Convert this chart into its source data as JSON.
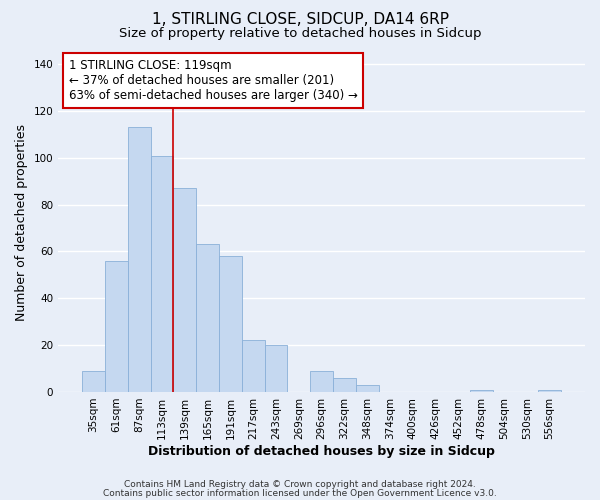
{
  "title_line1": "1, STIRLING CLOSE, SIDCUP, DA14 6RP",
  "title_line2": "Size of property relative to detached houses in Sidcup",
  "xlabel": "Distribution of detached houses by size in Sidcup",
  "ylabel": "Number of detached properties",
  "bar_labels": [
    "35sqm",
    "61sqm",
    "87sqm",
    "113sqm",
    "139sqm",
    "165sqm",
    "191sqm",
    "217sqm",
    "243sqm",
    "269sqm",
    "296sqm",
    "322sqm",
    "348sqm",
    "374sqm",
    "400sqm",
    "426sqm",
    "452sqm",
    "478sqm",
    "504sqm",
    "530sqm",
    "556sqm"
  ],
  "bar_values": [
    9,
    56,
    113,
    101,
    87,
    63,
    58,
    22,
    20,
    0,
    9,
    6,
    3,
    0,
    0,
    0,
    0,
    1,
    0,
    0,
    1
  ],
  "bar_color": "#c5d8f0",
  "bar_edge_color": "#8ab0d8",
  "vline_color": "#cc0000",
  "vline_x_index": 3,
  "ylim": [
    0,
    145
  ],
  "yticks": [
    0,
    20,
    40,
    60,
    80,
    100,
    120,
    140
  ],
  "annotation_text": "1 STIRLING CLOSE: 119sqm\n← 37% of detached houses are smaller (201)\n63% of semi-detached houses are larger (340) →",
  "annotation_box_color": "#ffffff",
  "annotation_border_color": "#cc0000",
  "footer_line1": "Contains HM Land Registry data © Crown copyright and database right 2024.",
  "footer_line2": "Contains public sector information licensed under the Open Government Licence v3.0.",
  "background_color": "#e8eef8",
  "plot_bg_color": "#e8eef8",
  "grid_color": "#ffffff",
  "title_fontsize": 11,
  "subtitle_fontsize": 9.5,
  "axis_label_fontsize": 9,
  "tick_fontsize": 7.5,
  "annotation_fontsize": 8.5,
  "footer_fontsize": 6.5
}
